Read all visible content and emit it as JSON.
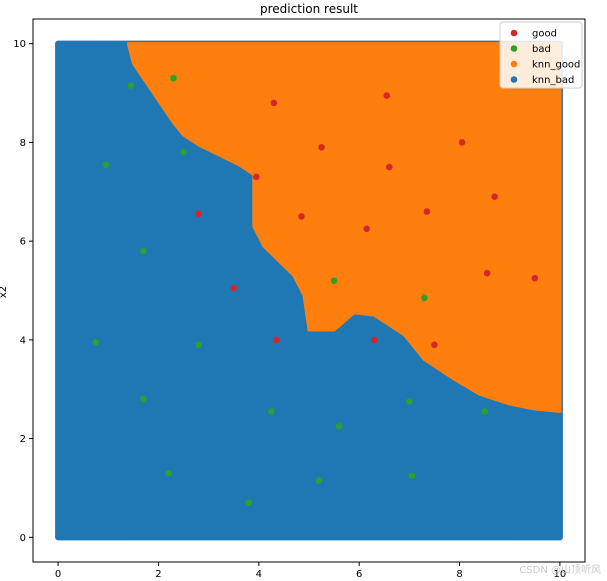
{
  "chart_data": {
    "type": "scatter",
    "title": "prediction result",
    "xlabel": "",
    "ylabel": "x2",
    "xlim": [
      -0.5,
      10.5
    ],
    "ylim": [
      -0.5,
      10.5
    ],
    "xticks": [
      0,
      2,
      4,
      6,
      8,
      10
    ],
    "yticks": [
      0,
      2,
      4,
      6,
      8,
      10
    ],
    "legend_position": "top-right",
    "colors": {
      "good": "#d62728",
      "bad": "#2ca02c",
      "knn_good": "#ff7f0e",
      "knn_bad": "#1f77b4"
    },
    "series": [
      {
        "name": "good",
        "x": [
          4.3,
          6.55,
          5.25,
          8.05,
          3.95,
          6.6,
          2.8,
          4.85,
          6.15,
          7.35,
          8.7,
          3.5,
          8.55,
          9.5,
          4.35,
          6.3,
          7.5
        ],
        "y": [
          8.8,
          8.95,
          7.9,
          8.0,
          7.3,
          7.5,
          6.55,
          6.5,
          6.25,
          6.6,
          6.9,
          5.05,
          5.35,
          5.25,
          4.0,
          4.0,
          3.9
        ]
      },
      {
        "name": "bad",
        "x": [
          2.3,
          1.45,
          0.95,
          2.5,
          1.7,
          5.5,
          7.3,
          0.75,
          2.8,
          1.7,
          4.25,
          5.6,
          7.0,
          8.5,
          2.2,
          5.2,
          7.05,
          3.8
        ],
        "y": [
          9.3,
          9.15,
          7.55,
          7.8,
          5.8,
          5.2,
          4.85,
          3.95,
          3.9,
          2.8,
          2.55,
          2.25,
          2.75,
          2.55,
          1.3,
          1.15,
          1.25,
          0.7
        ]
      },
      {
        "name": "knn_good",
        "region_boundary": [
          [
            1.4,
            10
          ],
          [
            1.5,
            9.6
          ],
          [
            1.7,
            9.3
          ],
          [
            1.9,
            9.0
          ],
          [
            2.1,
            8.7
          ],
          [
            2.3,
            8.4
          ],
          [
            2.5,
            8.15
          ],
          [
            2.8,
            7.95
          ],
          [
            3.2,
            7.75
          ],
          [
            3.6,
            7.55
          ],
          [
            3.9,
            7.35
          ],
          [
            3.9,
            6.3
          ],
          [
            4.1,
            5.9
          ],
          [
            4.4,
            5.6
          ],
          [
            4.7,
            5.3
          ],
          [
            4.9,
            4.9
          ],
          [
            5.0,
            4.2
          ],
          [
            5.5,
            4.2
          ],
          [
            5.9,
            4.55
          ],
          [
            6.3,
            4.5
          ],
          [
            6.9,
            4.1
          ],
          [
            7.3,
            3.6
          ],
          [
            7.9,
            3.2
          ],
          [
            8.4,
            2.9
          ],
          [
            9.0,
            2.7
          ],
          [
            9.5,
            2.6
          ],
          [
            10.0,
            2.55
          ],
          [
            10,
            10
          ]
        ]
      },
      {
        "name": "knn_bad",
        "grid_extent": [
          0,
          10,
          0,
          10
        ]
      }
    ]
  },
  "watermark": "CSDN @山顶听风"
}
